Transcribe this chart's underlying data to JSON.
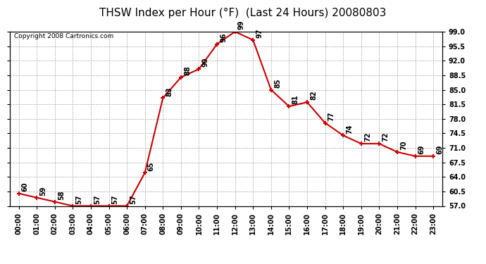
{
  "title": "THSW Index per Hour (°F)  (Last 24 Hours) 20080803",
  "copyright": "Copyright 2008 Cartronics.com",
  "hours": [
    0,
    1,
    2,
    3,
    4,
    5,
    6,
    7,
    8,
    9,
    10,
    11,
    12,
    13,
    14,
    15,
    16,
    17,
    18,
    19,
    20,
    21,
    22,
    23
  ],
  "values": [
    60,
    59,
    58,
    57,
    57,
    57,
    57,
    65,
    83,
    88,
    90,
    96,
    99,
    97,
    85,
    81,
    82,
    77,
    74,
    72,
    72,
    70,
    69,
    69
  ],
  "xlabels": [
    "00:00",
    "01:00",
    "02:00",
    "03:00",
    "04:00",
    "05:00",
    "06:00",
    "07:00",
    "08:00",
    "09:00",
    "10:00",
    "11:00",
    "12:00",
    "13:00",
    "14:00",
    "15:00",
    "16:00",
    "17:00",
    "18:00",
    "19:00",
    "20:00",
    "21:00",
    "22:00",
    "23:00"
  ],
  "ylim": [
    57.0,
    99.0
  ],
  "yticks": [
    57.0,
    60.5,
    64.0,
    67.5,
    71.0,
    74.5,
    78.0,
    81.5,
    85.0,
    88.5,
    92.0,
    95.5,
    99.0
  ],
  "line_color": "#cc0000",
  "marker_color": "#cc0000",
  "bg_color": "#ffffff",
  "plot_bg_color": "#ffffff",
  "grid_color": "#aaaaaa",
  "title_fontsize": 11,
  "label_fontsize": 7,
  "annot_fontsize": 7,
  "copyright_fontsize": 6.5
}
